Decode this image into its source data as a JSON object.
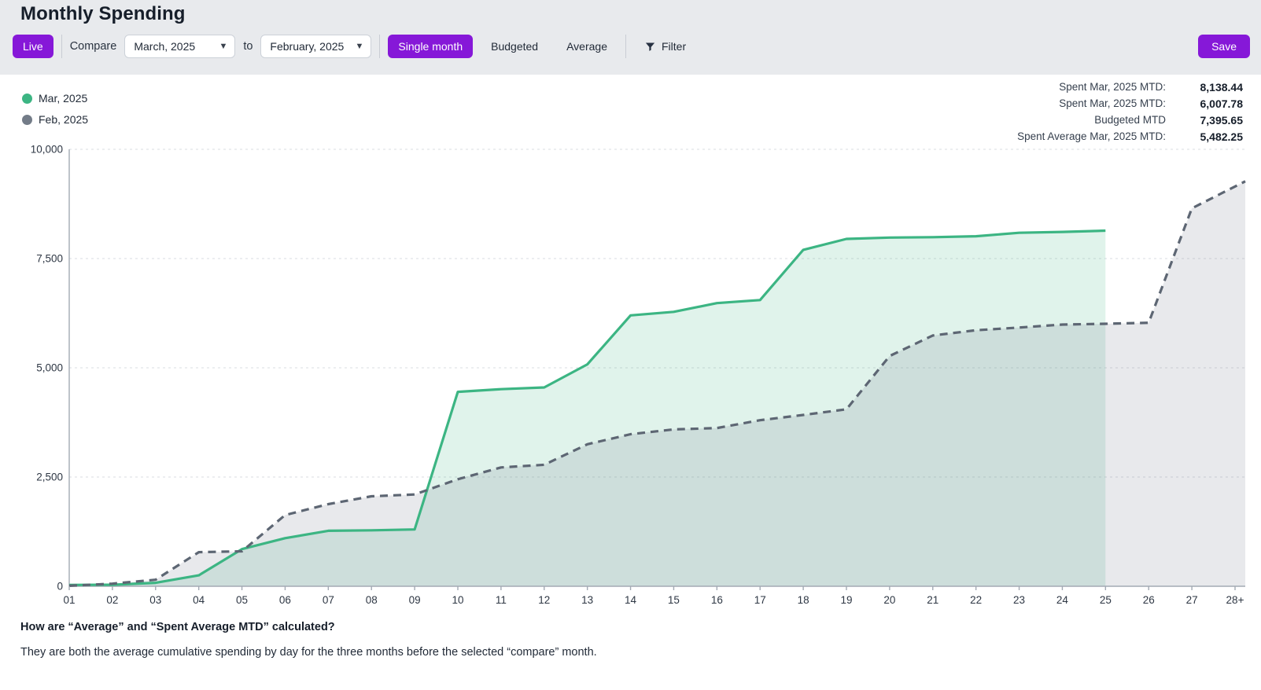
{
  "page": {
    "title": "Monthly Spending"
  },
  "colors": {
    "accent": "#8618d8",
    "mar_green": "#3cb583",
    "feb_gray": "#5d6673"
  },
  "toolbar": {
    "live_label": "Live",
    "compare_label": "Compare",
    "compare_from": "March, 2025",
    "to_label": "to",
    "compare_to": "February, 2025",
    "modes": [
      "Single month",
      "Budgeted",
      "Average"
    ],
    "active_mode": "Single month",
    "filter_label": "Filter",
    "save_label": "Save"
  },
  "legend": [
    {
      "label": "Mar, 2025",
      "color": "#3cb583"
    },
    {
      "label": "Feb, 2025",
      "color": "#737c88"
    }
  ],
  "stats": [
    {
      "label": "Spent Mar, 2025 MTD:",
      "value": "8,138.44"
    },
    {
      "label": "Spent Mar, 2025 MTD:",
      "value": "6,007.78"
    },
    {
      "label": "Budgeted MTD",
      "value": "7,395.65"
    },
    {
      "label": "Spent Average Mar, 2025 MTD:",
      "value": "5,482.25"
    }
  ],
  "chart_data": {
    "type": "area",
    "title": "Monthly cumulative spending comparison",
    "x_labels": [
      "01",
      "02",
      "03",
      "04",
      "05",
      "06",
      "07",
      "08",
      "09",
      "10",
      "11",
      "12",
      "13",
      "14",
      "15",
      "16",
      "17",
      "18",
      "19",
      "20",
      "21",
      "22",
      "23",
      "24",
      "25",
      "26",
      "27",
      "28+"
    ],
    "ylim": [
      0,
      10000
    ],
    "yticks": [
      0,
      2500,
      5000,
      7500,
      10000
    ],
    "grid": true,
    "legend_position": "top-left",
    "series": [
      {
        "name": "Mar, 2025",
        "color": "#3cb583",
        "style": "solid",
        "fill": "rgba(60,181,131,0.16)",
        "values": [
          30,
          35,
          80,
          250,
          850,
          1100,
          1270,
          1280,
          1300,
          4450,
          4510,
          4550,
          5080,
          6200,
          6280,
          6480,
          6550,
          7700,
          7950,
          7980,
          7990,
          8010,
          8090,
          8110,
          8138.44
        ]
      },
      {
        "name": "Feb, 2025",
        "color": "#5d6673",
        "style": "dashed",
        "fill": "rgba(100,110,125,0.15)",
        "extend_to_edge": true,
        "values": [
          10,
          60,
          150,
          780,
          800,
          1630,
          1880,
          2060,
          2100,
          2450,
          2720,
          2780,
          3250,
          3480,
          3590,
          3620,
          3800,
          3920,
          4050,
          5270,
          5740,
          5860,
          5920,
          5990,
          6007.78,
          6030,
          8650,
          9150
        ]
      }
    ]
  },
  "footer": {
    "question": "How are “Average” and “Spent Average MTD” calculated?",
    "answer": "They are both the average cumulative spending by day for the three months before the selected “compare” month."
  }
}
